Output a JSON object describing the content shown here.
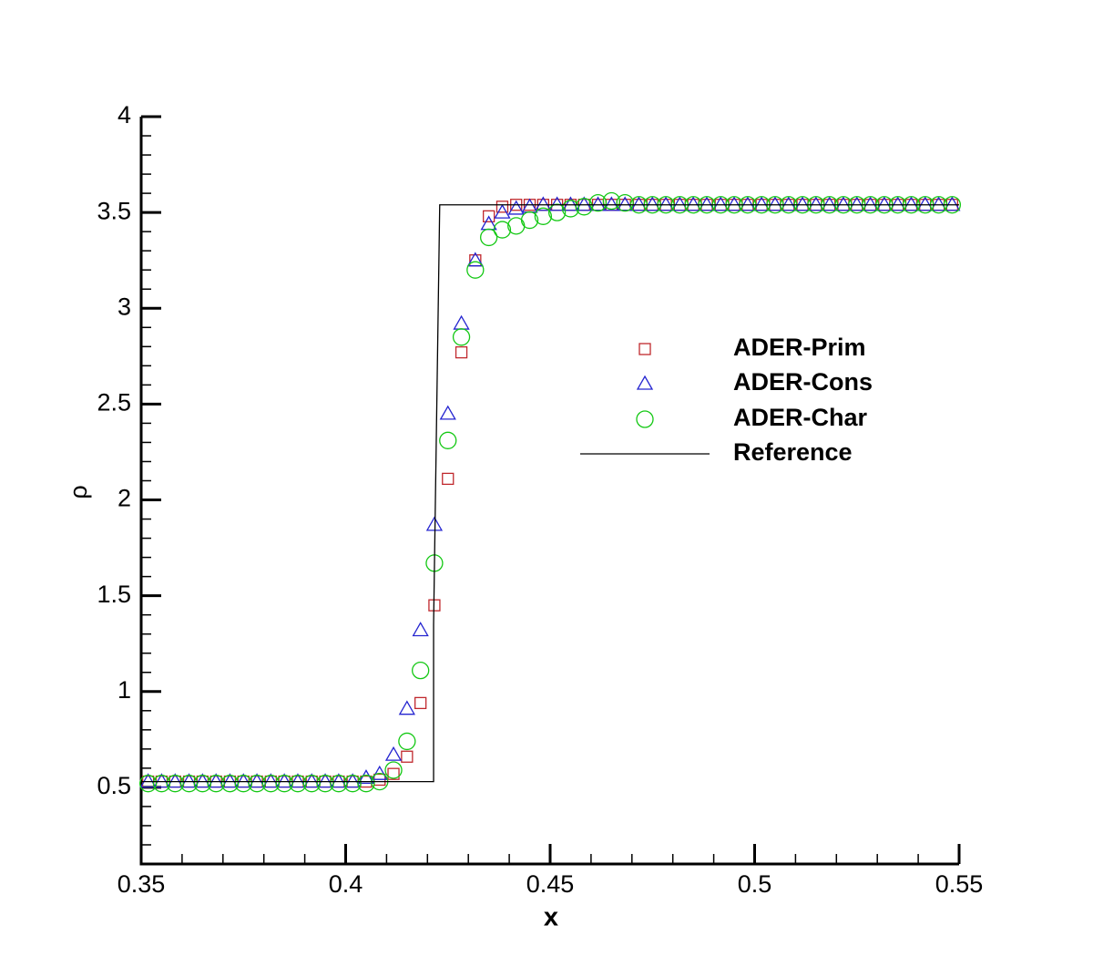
{
  "chart_data": {
    "type": "scatter",
    "xlabel": "x",
    "ylabel": "ρ",
    "xlim": [
      0.35,
      0.55
    ],
    "xticks": [
      0.35,
      0.4,
      0.45,
      0.5,
      0.55
    ],
    "xminorticks": [
      0.36,
      0.37,
      0.38,
      0.39,
      0.41,
      0.42,
      0.43,
      0.44,
      0.46,
      0.47,
      0.48,
      0.49,
      0.51,
      0.52,
      0.53,
      0.54
    ],
    "ylim": [
      0.1,
      4
    ],
    "yticks": [
      0.5,
      1,
      1.5,
      2,
      2.5,
      3,
      3.5,
      4
    ],
    "yminorticks": [
      0.1,
      0.2,
      0.3,
      0.4,
      0.6,
      0.7,
      0.8,
      0.9,
      1.1,
      1.2,
      1.3,
      1.4,
      1.6,
      1.7,
      1.8,
      1.9,
      2.1,
      2.2,
      2.3,
      2.4,
      2.6,
      2.7,
      2.8,
      2.9,
      3.1,
      3.2,
      3.3,
      3.4,
      3.6,
      3.7,
      3.8,
      3.9
    ],
    "x": [
      0.3517,
      0.355,
      0.3583,
      0.3617,
      0.365,
      0.3683,
      0.3717,
      0.375,
      0.3783,
      0.3817,
      0.385,
      0.3883,
      0.3917,
      0.395,
      0.3983,
      0.4017,
      0.405,
      0.4083,
      0.4117,
      0.415,
      0.4183,
      0.4217,
      0.425,
      0.4283,
      0.4317,
      0.435,
      0.4383,
      0.4417,
      0.445,
      0.4483,
      0.4517,
      0.455,
      0.4583,
      0.4617,
      0.465,
      0.4683,
      0.4717,
      0.475,
      0.4783,
      0.4817,
      0.485,
      0.4883,
      0.4917,
      0.495,
      0.4983,
      0.5017,
      0.505,
      0.5083,
      0.5117,
      0.515,
      0.5183,
      0.5217,
      0.525,
      0.5283,
      0.5317,
      0.535,
      0.5383,
      0.5417,
      0.545,
      0.5483
    ],
    "series": [
      {
        "name": "ADER-Prim",
        "color": "#c0282d",
        "marker": "square",
        "values": [
          0.53,
          0.53,
          0.53,
          0.53,
          0.53,
          0.53,
          0.53,
          0.53,
          0.53,
          0.53,
          0.53,
          0.53,
          0.53,
          0.53,
          0.53,
          0.53,
          0.53,
          0.54,
          0.57,
          0.66,
          0.94,
          1.45,
          2.11,
          2.77,
          3.25,
          3.48,
          3.53,
          3.54,
          3.54,
          3.54,
          3.54,
          3.54,
          3.54,
          3.54,
          3.54,
          3.54,
          3.54,
          3.54,
          3.54,
          3.54,
          3.54,
          3.54,
          3.54,
          3.54,
          3.54,
          3.54,
          3.54,
          3.54,
          3.54,
          3.54,
          3.54,
          3.54,
          3.54,
          3.54,
          3.54,
          3.54,
          3.54,
          3.54,
          3.54,
          3.54
        ]
      },
      {
        "name": "ADER-Cons",
        "color": "#2424d0",
        "marker": "triangle",
        "values": [
          0.53,
          0.53,
          0.53,
          0.53,
          0.53,
          0.53,
          0.53,
          0.53,
          0.53,
          0.53,
          0.53,
          0.53,
          0.53,
          0.53,
          0.53,
          0.53,
          0.55,
          0.57,
          0.67,
          0.91,
          1.32,
          1.87,
          2.45,
          2.92,
          3.25,
          3.44,
          3.5,
          3.52,
          3.53,
          3.54,
          3.54,
          3.54,
          3.54,
          3.54,
          3.54,
          3.54,
          3.54,
          3.54,
          3.54,
          3.54,
          3.54,
          3.54,
          3.54,
          3.54,
          3.54,
          3.54,
          3.54,
          3.54,
          3.54,
          3.54,
          3.54,
          3.54,
          3.54,
          3.54,
          3.54,
          3.54,
          3.54,
          3.54,
          3.54,
          3.54
        ]
      },
      {
        "name": "ADER-Char",
        "color": "#14c814",
        "marker": "circle",
        "values": [
          0.52,
          0.52,
          0.52,
          0.52,
          0.52,
          0.52,
          0.52,
          0.52,
          0.52,
          0.52,
          0.52,
          0.52,
          0.52,
          0.52,
          0.52,
          0.52,
          0.52,
          0.53,
          0.59,
          0.74,
          1.11,
          1.67,
          2.31,
          2.85,
          3.2,
          3.37,
          3.41,
          3.43,
          3.46,
          3.48,
          3.5,
          3.52,
          3.53,
          3.55,
          3.56,
          3.55,
          3.54,
          3.54,
          3.54,
          3.54,
          3.54,
          3.54,
          3.54,
          3.54,
          3.54,
          3.54,
          3.54,
          3.54,
          3.54,
          3.54,
          3.54,
          3.54,
          3.54,
          3.54,
          3.54,
          3.54,
          3.54,
          3.54,
          3.54,
          3.54
        ]
      },
      {
        "name": "Reference",
        "color": "#000000",
        "marker": "line",
        "x": [
          0.35,
          0.4215,
          0.4215,
          0.423,
          0.55
        ],
        "values": [
          0.53,
          0.53,
          1.35,
          3.54,
          3.54
        ]
      }
    ]
  }
}
